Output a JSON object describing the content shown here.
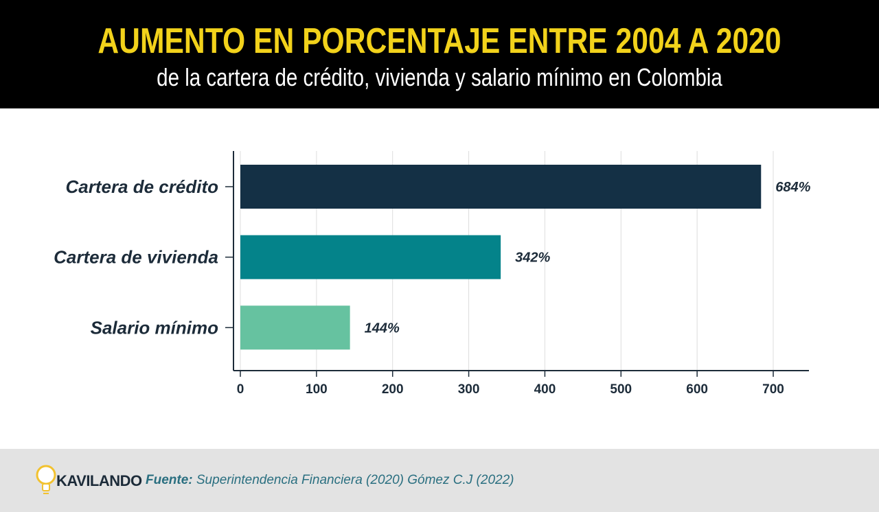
{
  "header": {
    "title": "AUMENTO EN PORCENTAJE ENTRE 2004 A 2020",
    "subtitle": "de la cartera de crédito, vivienda y salario mínimo en Colombia"
  },
  "chart_data": {
    "type": "bar",
    "orientation": "horizontal",
    "categories": [
      "Cartera de crédito",
      "Cartera de vivienda",
      "Salario mínimo"
    ],
    "values": [
      684,
      342,
      144
    ],
    "data_labels": [
      "684%",
      "342%",
      "144%"
    ],
    "colors": [
      "#143045",
      "#04838a",
      "#66c2a0"
    ],
    "xlim": [
      0,
      700
    ],
    "x_ticks": [
      0,
      100,
      200,
      300,
      400,
      500,
      600,
      700
    ],
    "grid": true,
    "xlabel": "",
    "ylabel": ""
  },
  "footer": {
    "logo_text": "KAVILANDO",
    "source_label": "Fuente:",
    "source_text": " Superintendencia Financiera (2020)  Gómez C.J (2022)"
  },
  "colors": {
    "title": "#f2d21b",
    "header_bg": "#000000",
    "footer_bg": "#e3e3e3",
    "axis": "#1c2b39",
    "grid": "#dddddd"
  },
  "icons": {
    "logo": "lightbulb-icon"
  }
}
